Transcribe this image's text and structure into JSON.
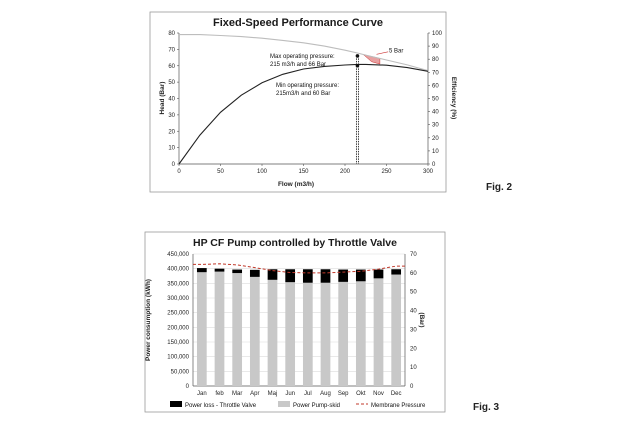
{
  "chart_data": [
    {
      "type": "line",
      "caption": "Fig. 2",
      "title": "Fixed-Speed Performance Curve",
      "xlabel": "Flow (m3/h)",
      "ylabel": "Head (Bar)",
      "y2label": "Efficiency (%)",
      "xlim": [
        0,
        300
      ],
      "ylim": [
        0,
        80
      ],
      "y2lim": [
        0,
        100
      ],
      "x_ticks": [
        "0",
        "50",
        "100",
        "150",
        "200",
        "250",
        "300"
      ],
      "y_ticks": [
        "0",
        "10",
        "20",
        "30",
        "40",
        "50",
        "60",
        "70",
        "80"
      ],
      "y2_ticks": [
        "0",
        "10",
        "20",
        "30",
        "40",
        "50",
        "60",
        "70",
        "80",
        "90",
        "100"
      ],
      "series": [
        {
          "name": "Head",
          "axis": "left",
          "color": "#bdbdbd",
          "x": [
            0,
            25,
            50,
            75,
            100,
            125,
            150,
            175,
            200,
            215,
            225,
            250,
            275,
            300
          ],
          "y": [
            79,
            79,
            78.5,
            77.8,
            76.8,
            75.5,
            74,
            72,
            69.5,
            67.8,
            66.5,
            63.5,
            60.5,
            57
          ]
        },
        {
          "name": "Efficiency",
          "axis": "right",
          "color": "#222222",
          "x": [
            0,
            25,
            50,
            75,
            100,
            125,
            150,
            175,
            200,
            215,
            225,
            250,
            275,
            300
          ],
          "y": [
            0,
            22,
            39.5,
            52.5,
            62,
            68.5,
            72.5,
            74.5,
            75.6,
            76,
            76,
            75.4,
            73.6,
            70.8
          ]
        }
      ],
      "points": [
        {
          "x": 215,
          "y": 66,
          "label_line1": "Max operating pressure:",
          "label_line2": "215 m3/h and 66 Bar"
        },
        {
          "x": 215,
          "y": 60,
          "label_line1": "Min operating pressure:",
          "label_line2": "215m3/h and 60 Bar"
        }
      ],
      "band_annotation": "5 Bar",
      "grid": false
    },
    {
      "type": "bar",
      "caption": "Fig. 3",
      "title": "HP CF Pump controlled by Throttle Valve",
      "ylabel": "Power consumption (kWh)",
      "y2label": "(Bar)",
      "ylim": [
        0,
        450000
      ],
      "y2lim": [
        0,
        70
      ],
      "y_ticks": [
        "0",
        "50,000",
        "100,000",
        "150,000",
        "200,000",
        "250,000",
        "300,000",
        "350,000",
        "400,000",
        "450,000"
      ],
      "y2_ticks": [
        "0",
        "10",
        "20",
        "30",
        "40",
        "50",
        "60",
        "70"
      ],
      "categories": [
        "Jan",
        "feb",
        "Mar",
        "Apr",
        "Maj",
        "Jun",
        "Jul",
        "Aug",
        "Sep",
        "Okt",
        "Nov",
        "Dec"
      ],
      "series": [
        {
          "name": "Power Pump-skid",
          "stack": "power",
          "color": "#c8c8c8",
          "values": [
            388000,
            390000,
            385000,
            372000,
            362000,
            354000,
            352000,
            352000,
            355000,
            357000,
            367000,
            380000
          ]
        },
        {
          "name": "Power loss - Throttle Valve",
          "stack": "power",
          "color": "#000000",
          "values": [
            14000,
            10000,
            12000,
            24000,
            36000,
            44000,
            46000,
            46000,
            42000,
            40000,
            30000,
            18000
          ]
        },
        {
          "name": "Membrane Pressure",
          "axis": "right",
          "type": "line",
          "color": "#c0392b",
          "values": [
            64.5,
            64.8,
            64.2,
            62.8,
            61.2,
            60.2,
            60.0,
            60.0,
            60.4,
            60.8,
            62.0,
            63.6
          ]
        }
      ],
      "legend": [
        "Power loss  - Throttle Valve",
        "Power Pump-skid",
        "Membrane Pressure"
      ],
      "legend_position": "bottom",
      "grid": true
    }
  ]
}
